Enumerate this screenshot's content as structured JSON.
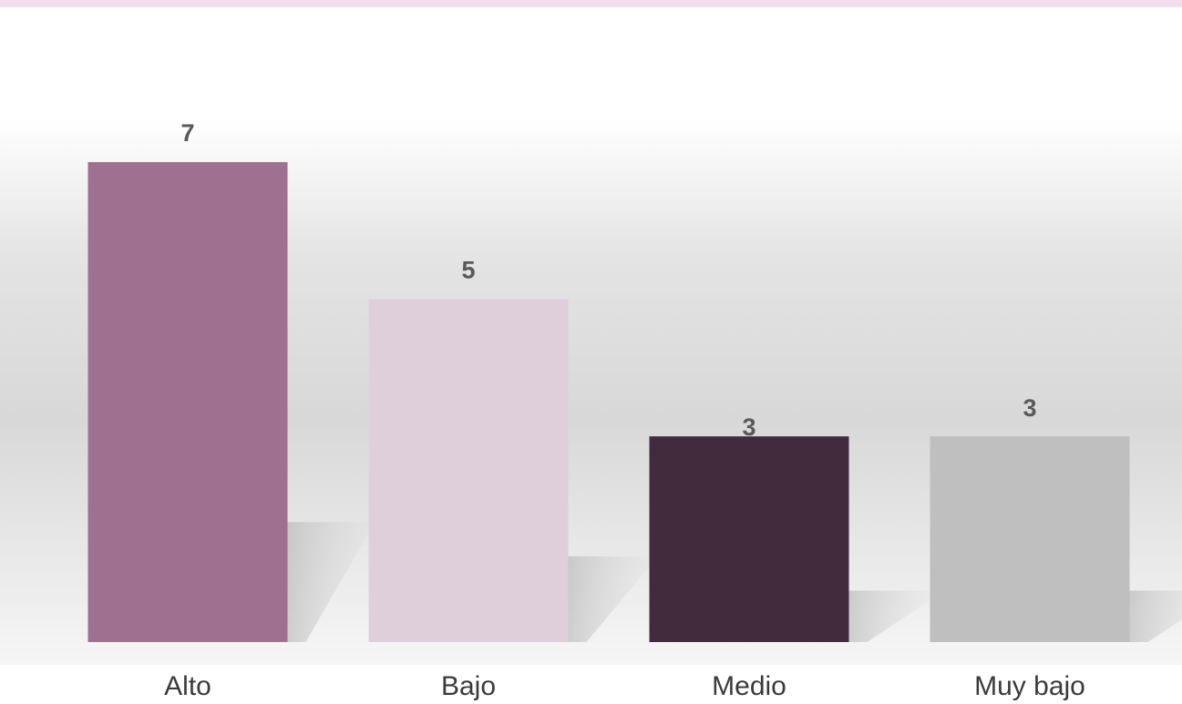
{
  "chart_data": {
    "type": "bar",
    "categories": [
      "Alto",
      "Bajo",
      "Medio",
      "Muy bajo"
    ],
    "values": [
      7,
      5,
      3,
      3
    ],
    "colors": [
      "#a07090",
      "#dfcfda",
      "#432b3e",
      "#bfbfbf"
    ],
    "data_labels": [
      "7",
      "5",
      "3",
      "3"
    ],
    "title": "",
    "xlabel": "",
    "ylabel": "",
    "ylim": [
      0,
      7
    ],
    "grid": false,
    "legend": "none"
  },
  "theme": {
    "accent_band": "#f2dfee",
    "backdrop_top": "#ffffff",
    "backdrop_mid": "#dadada",
    "backdrop_bottom": "#f7f7f7",
    "shadow": "#bdbdbd",
    "category_label_color": "#3a3a3a",
    "value_label_color": "#595959"
  }
}
